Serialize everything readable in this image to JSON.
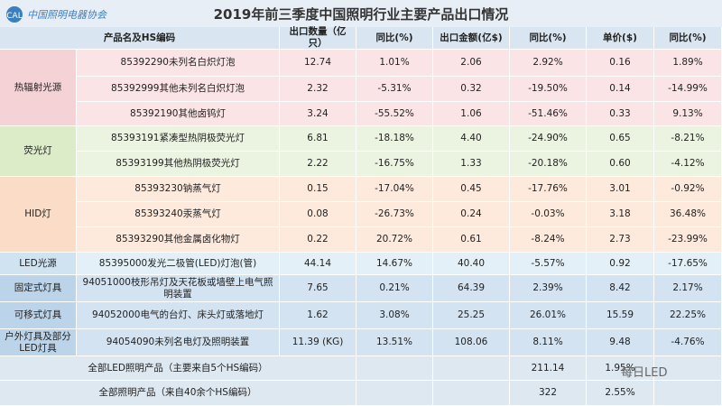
{
  "header": {
    "title": "2019年前三季度中国照明行业主要产品出口情况",
    "logo_text": "中国照明电器协会"
  },
  "table": {
    "columns": [
      "产品名及HS编码",
      "出口数量（亿只）",
      "同比(%)",
      "出口金额(亿$)",
      "同比(%)",
      "单价($)",
      "同比(%)"
    ],
    "groups": [
      {
        "label": "热辐射光源",
        "rows": [
          [
            "85392290未列名白炽灯泡",
            "12.74",
            "1.01%",
            "2.06",
            "2.92%",
            "0.16",
            "1.89%"
          ],
          [
            "85392999其他未列名白炽灯泡",
            "2.32",
            "-5.31%",
            "0.32",
            "-19.50%",
            "0.14",
            "-14.99%"
          ],
          [
            "85392190其他卤钨灯",
            "3.24",
            "-55.52%",
            "1.06",
            "-51.46%",
            "0.33",
            "9.13%"
          ]
        ]
      },
      {
        "label": "荧光灯",
        "rows": [
          [
            "85393191紧凑型热阴极荧光灯",
            "6.81",
            "-18.18%",
            "4.40",
            "-24.90%",
            "0.65",
            "-8.21%"
          ],
          [
            "85393199其他热阴极荧光灯",
            "2.22",
            "-16.75%",
            "1.33",
            "-20.18%",
            "0.60",
            "-4.12%"
          ]
        ]
      },
      {
        "label": "HID灯",
        "rows": [
          [
            "85393230钠蒸气灯",
            "0.15",
            "-17.04%",
            "0.45",
            "-17.76%",
            "3.01",
            "-0.92%"
          ],
          [
            "85393240汞蒸气灯",
            "0.08",
            "-26.73%",
            "0.24",
            "-0.03%",
            "3.18",
            "36.48%"
          ],
          [
            "85393290其他金属卤化物灯",
            "0.22",
            "20.72%",
            "0.61",
            "-8.24%",
            "2.73",
            "-23.99%"
          ]
        ]
      },
      {
        "label": "LED光源",
        "rows": [
          [
            "85395000发光二极管(LED)灯泡(管)",
            "44.14",
            "14.67%",
            "40.40",
            "-5.57%",
            "0.92",
            "-17.65%"
          ]
        ]
      },
      {
        "label": "固定式灯具",
        "rows": [
          [
            "94051000枝形吊灯及天花板或墙壁上电气照明装置",
            "7.65",
            "0.21%",
            "64.39",
            "2.39%",
            "8.42",
            "2.17%"
          ]
        ]
      },
      {
        "label": "可移式灯具",
        "rows": [
          [
            "94052000电气的台灯、床头灯或落地灯",
            "1.62",
            "3.08%",
            "25.25",
            "26.01%",
            "15.59",
            "22.25%"
          ]
        ]
      },
      {
        "label": "户外灯具及部分LED灯具",
        "rows": [
          [
            "94054090未列名电灯及照明装置",
            "11.39 (KG)",
            "13.51%",
            "108.06",
            "8.11%",
            "9.48",
            "-4.76%"
          ]
        ]
      }
    ],
    "totals": [
      {
        "label": "全部LED照明产品（主要来自5个HS编码）",
        "amount": "211.14",
        "yoy": "1.95%"
      },
      {
        "label": "全部照明产品（来自40余个HS编码）",
        "amount": "322",
        "yoy": "2.55%"
      }
    ]
  },
  "watermark": "每日LED"
}
